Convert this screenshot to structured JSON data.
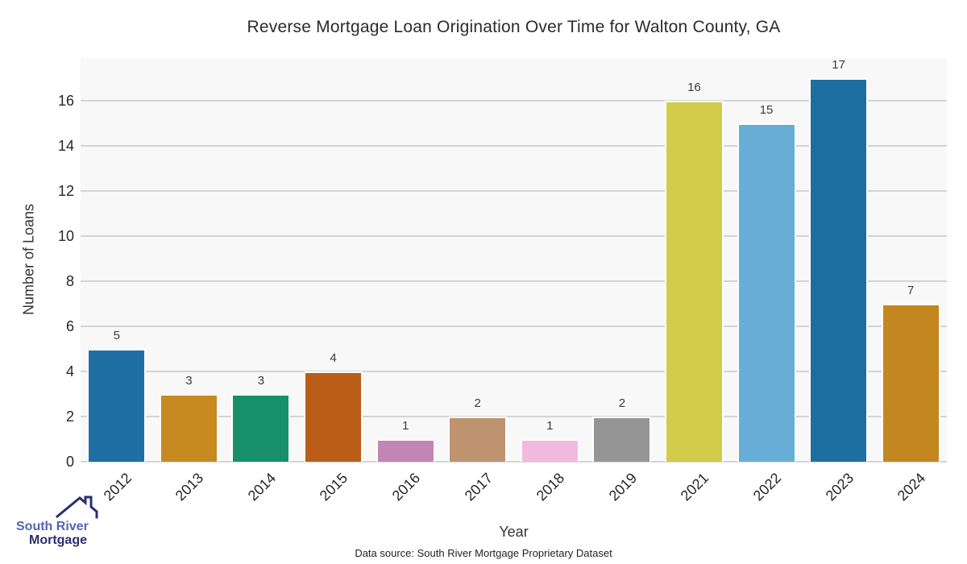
{
  "chart_data": {
    "type": "bar",
    "title": "Reverse Mortgage Loan Origination Over Time for Walton County, GA",
    "categories": [
      "2012",
      "2013",
      "2014",
      "2015",
      "2016",
      "2017",
      "2018",
      "2019",
      "2021",
      "2022",
      "2023",
      "2024"
    ],
    "values": [
      5,
      3,
      3,
      4,
      1,
      2,
      1,
      2,
      16,
      15,
      17,
      7
    ],
    "bar_colors": [
      "#1f6fa4",
      "#c68a20",
      "#17906a",
      "#ba5d18",
      "#c286b6",
      "#bd9370",
      "#f2b9de",
      "#959595",
      "#d3cb4a",
      "#67aed6",
      "#1d6f9f",
      "#c4871f"
    ],
    "xlabel": "Year",
    "ylabel": "Number of Loans",
    "yticks": [
      0,
      2,
      4,
      6,
      8,
      10,
      12,
      14,
      16
    ],
    "ylim": [
      0,
      17.9
    ],
    "grid": true,
    "value_labels": true,
    "legend": "none"
  },
  "footer": {
    "source_text": "Data source: South River Mortgage Proprietary Dataset"
  },
  "logo": {
    "line1": "South River",
    "line2": "Mortgage"
  },
  "colors": {
    "plot_bg": "#f8f8f8",
    "grid": "#d4d4d4",
    "bar_edge": "#ffffff",
    "logo_light_blue": "#5265ae",
    "logo_navy": "#2a2f6e"
  }
}
